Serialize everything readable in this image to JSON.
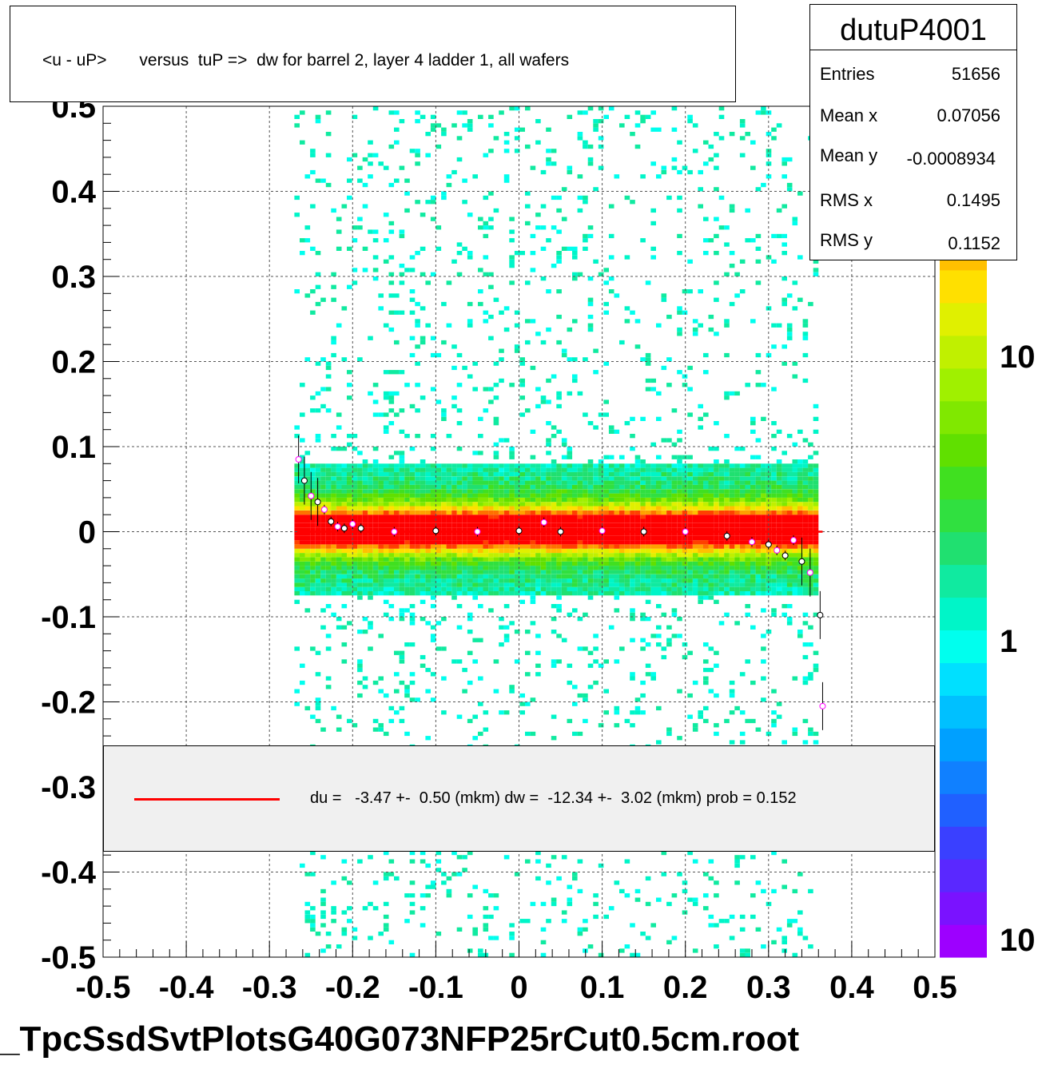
{
  "title": "<u - uP>       versus  tuP =>  dw for barrel 2, layer 4 ladder 1, all wafers",
  "stats": {
    "name": "dutuP4001",
    "rows": [
      {
        "label": "Entries",
        "value": "51656"
      },
      {
        "label": "Mean x",
        "value": "0.07056"
      },
      {
        "label": "Mean y",
        "value": "-0.0008934"
      },
      {
        "label": "RMS x",
        "value": "0.1495"
      },
      {
        "label": "RMS y",
        "value": "0.1152"
      }
    ]
  },
  "legend": {
    "text": "du =   -3.47 +-  0.50 (mkm) dw =  -12.34 +-  3.02 (mkm) prob = 0.152",
    "line_color": "#ff0000"
  },
  "footer": "_TpcSsdSvtPlotsG40G073NFP25rCut0.5cm.root",
  "chart_data": {
    "type": "heatmap",
    "xlim": [
      -0.5,
      0.5
    ],
    "ylim": [
      -0.5,
      0.5
    ],
    "x_ticks": [
      "-0.5",
      "-0.4",
      "-0.3",
      "-0.2",
      "-0.1",
      "0",
      "0.1",
      "0.2",
      "0.3",
      "0.4",
      "0.5"
    ],
    "y_ticks": [
      "-0.5",
      "-0.4",
      "-0.3",
      "-0.2",
      "-0.1",
      "0",
      "0.1",
      "0.2",
      "0.3",
      "0.4",
      "0.5"
    ],
    "grid": true,
    "colorbar": {
      "scale": "log",
      "labels": [
        "10",
        "1",
        "10"
      ],
      "colors": [
        "#9d00ff",
        "#7a12ff",
        "#5a28ff",
        "#3a40ff",
        "#2060ff",
        "#1080ff",
        "#00a0ff",
        "#00c0ff",
        "#00e0ff",
        "#00ffee",
        "#00f5c8",
        "#10eaa0",
        "#20e070",
        "#30e040",
        "#40e020",
        "#60e000",
        "#80e800",
        "#a0f000",
        "#c0f000",
        "#e0f000",
        "#ffe000",
        "#ffc000",
        "#ffa000",
        "#ff7000",
        "#ff4000",
        "#ff0000"
      ]
    },
    "data_region": {
      "x_min": -0.27,
      "x_max": 0.36
    },
    "fit_line": {
      "x": [
        -0.265,
        0.365
      ],
      "y": [
        0.0,
        0.0
      ],
      "color": "#ff0000"
    },
    "profile_points": [
      {
        "x": -0.265,
        "y": 0.085
      },
      {
        "x": -0.258,
        "y": 0.06
      },
      {
        "x": -0.25,
        "y": 0.042
      },
      {
        "x": -0.242,
        "y": 0.035
      },
      {
        "x": -0.234,
        "y": 0.026
      },
      {
        "x": -0.226,
        "y": 0.012
      },
      {
        "x": -0.218,
        "y": 0.006
      },
      {
        "x": -0.21,
        "y": 0.004
      },
      {
        "x": -0.2,
        "y": 0.009
      },
      {
        "x": -0.19,
        "y": 0.004
      },
      {
        "x": -0.15,
        "y": 0.0
      },
      {
        "x": -0.1,
        "y": 0.001
      },
      {
        "x": -0.05,
        "y": 0.0
      },
      {
        "x": 0.0,
        "y": 0.001
      },
      {
        "x": 0.03,
        "y": 0.011
      },
      {
        "x": 0.05,
        "y": 0.0
      },
      {
        "x": 0.1,
        "y": 0.001
      },
      {
        "x": 0.15,
        "y": 0.0
      },
      {
        "x": 0.2,
        "y": 0.0
      },
      {
        "x": 0.25,
        "y": -0.005
      },
      {
        "x": 0.28,
        "y": -0.012
      },
      {
        "x": 0.3,
        "y": -0.015
      },
      {
        "x": 0.31,
        "y": -0.022
      },
      {
        "x": 0.32,
        "y": -0.028
      },
      {
        "x": 0.33,
        "y": -0.01
      },
      {
        "x": 0.34,
        "y": -0.035
      },
      {
        "x": 0.35,
        "y": -0.048
      },
      {
        "x": 0.362,
        "y": -0.098
      },
      {
        "x": 0.365,
        "y": -0.205
      }
    ]
  }
}
